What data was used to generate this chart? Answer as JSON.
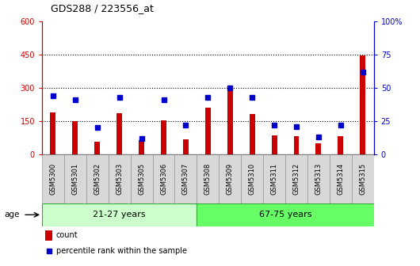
{
  "title": "GDS288 / 223556_at",
  "samples": [
    "GSM5300",
    "GSM5301",
    "GSM5302",
    "GSM5303",
    "GSM5305",
    "GSM5306",
    "GSM5307",
    "GSM5308",
    "GSM5309",
    "GSM5310",
    "GSM5311",
    "GSM5312",
    "GSM5313",
    "GSM5314",
    "GSM5315"
  ],
  "counts": [
    190,
    148,
    58,
    185,
    65,
    152,
    67,
    210,
    305,
    180,
    85,
    80,
    48,
    80,
    445
  ],
  "percentiles": [
    44,
    41,
    20,
    43,
    12,
    41,
    22,
    43,
    50,
    43,
    22,
    21,
    13,
    22,
    62
  ],
  "group1_label": "21-27 years",
  "group1_count": 7,
  "group2_label": "67-75 years",
  "group2_count": 8,
  "ylim_left": [
    0,
    600
  ],
  "ylim_right": [
    0,
    100
  ],
  "yticks_left": [
    0,
    150,
    300,
    450,
    600
  ],
  "yticks_right": [
    0,
    25,
    50,
    75,
    100
  ],
  "right_tick_labels": [
    "0",
    "25",
    "50",
    "75",
    "100%"
  ],
  "bar_color": "#cc0000",
  "dot_color": "#0000cc",
  "bg_color": "#ffffff",
  "group_bg_light": "#ccffcc",
  "group_bg_dark": "#66ff66",
  "ylabel_left_color": "#cc0000",
  "ylabel_right_color": "#0000cc",
  "legend_count_label": "count",
  "legend_pct_label": "percentile rank within the sample",
  "age_label": "age",
  "title_fontsize": 9,
  "tick_fontsize": 7,
  "sample_fontsize": 6,
  "group_fontsize": 8,
  "legend_fontsize": 7
}
